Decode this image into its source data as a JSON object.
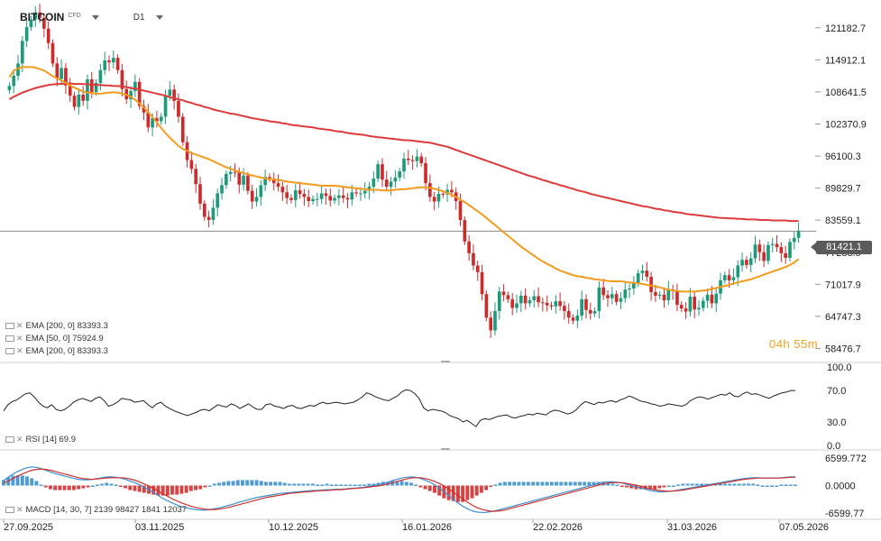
{
  "header": {
    "symbol": "BITCOIN",
    "symbol_type": "CFD",
    "timeframe": "D1"
  },
  "countdown": "04h 55m",
  "last_price_label": "81421.1",
  "indicators": {
    "ema1": "EMA [200, 0] 83393.3",
    "ema2": "EMA [50, 0] 75924.9",
    "ema3": "EMA [200, 0] 83393.3",
    "rsi": "RSI [14] 69.9",
    "macd": "MACD [14, 30, 7] 2139 98427 1841 12037"
  },
  "colors": {
    "up": "#1d9a7a",
    "down": "#cc2b2b",
    "ema200": "#dd3b3b",
    "ema50": "#f39b1f",
    "rsi": "#222222",
    "macd_line": "#3a8fd0",
    "signal_line": "#d02f2f"
  },
  "chart_data": [
    {
      "type": "candlestick",
      "title": "BITCOIN",
      "x_ticks": [
        "27.09.2025",
        "03.11.2025",
        "10.12.2025",
        "16.01.2026",
        "22.02.2026",
        "31.03.2026",
        "07.05.2026"
      ],
      "y_ticks": [
        "121182.7",
        "114912.1",
        "108641.5",
        "102370.9",
        "96100.3",
        "89829.7",
        "83559.1",
        "77288.5",
        "71017.9",
        "64747.3",
        "58476.7"
      ],
      "ylim": [
        57500,
        125200
      ],
      "last_price": 81421.1,
      "closes": [
        109800,
        111800,
        114200,
        118600,
        121300,
        122800,
        124200,
        123100,
        121000,
        118200,
        114200,
        111200,
        113300,
        109900,
        107900,
        105700,
        108100,
        106900,
        111100,
        108600,
        110400,
        112900,
        114800,
        114400,
        115300,
        112900,
        109200,
        107200,
        108800,
        110600,
        105900,
        104600,
        101700,
        103500,
        102900,
        103800,
        107900,
        109100,
        106900,
        103800,
        98800,
        95300,
        93600,
        90600,
        86800,
        84200,
        83600,
        86000,
        88800,
        90400,
        92600,
        93000,
        92900,
        90500,
        92300,
        89300,
        87200,
        88100,
        90400,
        92000,
        91700,
        90800,
        90100,
        89000,
        87900,
        87500,
        89400,
        88700,
        88100,
        87300,
        87700,
        87700,
        88800,
        88300,
        87400,
        87900,
        88400,
        87900,
        87600,
        89000,
        88800,
        88800,
        89300,
        90100,
        91700,
        94500,
        91500,
        90100,
        91100,
        91900,
        93100,
        95600,
        95300,
        95100,
        96000,
        94700,
        90800,
        88100,
        87200,
        88700,
        88600,
        89500,
        89000,
        87300,
        83600,
        79400,
        77100,
        74700,
        73400,
        69100,
        64500,
        62000,
        65800,
        69600,
        68900,
        68100,
        66400,
        67300,
        68800,
        67300,
        67900,
        68700,
        67500,
        67400,
        66900,
        66700,
        67700,
        66800,
        65800,
        64500,
        63900,
        64900,
        68100,
        66000,
        65300,
        65800,
        70400,
        68900,
        68300,
        69100,
        67600,
        68300,
        70000,
        70200,
        71200,
        73200,
        73700,
        72500,
        69500,
        68800,
        69000,
        67900,
        70000,
        69700,
        67000,
        66300,
        65700,
        68600,
        66100,
        66400,
        67800,
        69000,
        67300,
        69200,
        71800,
        72800,
        71800,
        72400,
        74700,
        75800,
        74800,
        76100,
        78800,
        77300,
        75600,
        78700,
        78900,
        78300,
        77100,
        76200,
        79300,
        80100,
        81400
      ],
      "ema50": [
        111500,
        112800,
        113200,
        113500,
        113500,
        113500,
        113400,
        113100,
        112800,
        112300,
        111700,
        111300,
        110900,
        110400,
        109900,
        109500,
        109100,
        108700,
        108500,
        108400,
        108300,
        108300,
        108400,
        108500,
        108600,
        108500,
        108300,
        108100,
        107700,
        107100,
        106400,
        105600,
        104700,
        103700,
        102700,
        101600,
        100600,
        99700,
        98900,
        98100,
        97500,
        97100,
        96700,
        96400,
        96100,
        95800,
        95500,
        95100,
        94700,
        94300,
        93900,
        93600,
        93300,
        93000,
        92800,
        92500,
        92300,
        92100,
        91900,
        91700,
        91600,
        91500,
        91400,
        91300,
        91100,
        91000,
        90900,
        90800,
        90700,
        90600,
        90500,
        90400,
        90300,
        90300,
        90300,
        90300,
        90200,
        90100,
        90000,
        89900,
        89800,
        89700,
        89600,
        89500,
        89500,
        89500,
        89400,
        89400,
        89400,
        89500,
        89600,
        89600,
        89700,
        89800,
        89900,
        90000,
        90000,
        89900,
        89700,
        89500,
        89200,
        88900,
        88500,
        88100,
        87600,
        87100,
        86500,
        85900,
        85300,
        84700,
        84000,
        83300,
        82600,
        81900,
        81200,
        80500,
        79800,
        79100,
        78400,
        77800,
        77200,
        76600,
        76000,
        75500,
        75000,
        74600,
        74100,
        73700,
        73400,
        73100,
        72800,
        72600,
        72500,
        72300,
        72200,
        72000,
        71900,
        71800,
        71700,
        71600,
        71600,
        71600,
        71500,
        71400,
        71300,
        71200,
        71100,
        70900,
        70800,
        70600,
        70400,
        70200,
        70000,
        69800,
        69700,
        69600,
        69600,
        69600,
        69600,
        69700,
        69800,
        69900,
        70100,
        70300,
        70500,
        70700,
        70900,
        71200,
        71400,
        71600,
        71800,
        72000,
        72300,
        72600,
        72900,
        73200,
        73500,
        73800,
        74100,
        74400,
        74800,
        75300,
        75900
      ],
      "ema200": [
        107200,
        107700,
        108100,
        108500,
        108800,
        109100,
        109400,
        109600,
        109800,
        110000,
        110100,
        110200,
        110200,
        110300,
        110300,
        110200,
        110200,
        110200,
        110100,
        110100,
        110000,
        110000,
        109900,
        109900,
        109800,
        109800,
        109700,
        109600,
        109400,
        109300,
        109100,
        108900,
        108700,
        108500,
        108300,
        108100,
        107900,
        107600,
        107400,
        107200,
        107000,
        106700,
        106500,
        106200,
        106000,
        105700,
        105500,
        105200,
        105000,
        104800,
        104600,
        104400,
        104300,
        104100,
        103900,
        103700,
        103500,
        103400,
        103200,
        103100,
        102900,
        102800,
        102700,
        102500,
        102400,
        102200,
        102100,
        102000,
        101900,
        101800,
        101700,
        101500,
        101400,
        101300,
        101200,
        101000,
        100900,
        100800,
        100600,
        100500,
        100400,
        100300,
        100200,
        100000,
        99900,
        99800,
        99700,
        99600,
        99500,
        99400,
        99300,
        99200,
        99200,
        99100,
        99000,
        98900,
        98800,
        98700,
        98500,
        98300,
        98100,
        97900,
        97600,
        97300,
        97000,
        96700,
        96400,
        96100,
        95800,
        95500,
        95200,
        94900,
        94600,
        94300,
        94000,
        93700,
        93400,
        93100,
        92800,
        92500,
        92200,
        92000,
        91700,
        91400,
        91200,
        90900,
        90700,
        90400,
        90200,
        89900,
        89700,
        89400,
        89200,
        89000,
        88700,
        88500,
        88300,
        88100,
        87900,
        87700,
        87500,
        87300,
        87100,
        86900,
        86700,
        86500,
        86300,
        86200,
        86000,
        85800,
        85700,
        85500,
        85400,
        85200,
        85100,
        85000,
        84800,
        84700,
        84600,
        84500,
        84400,
        84300,
        84200,
        84100,
        84000,
        84000,
        83900,
        83900,
        83800,
        83800,
        83700,
        83700,
        83700,
        83600,
        83600,
        83600,
        83500,
        83500,
        83500,
        83500,
        83400,
        83400,
        83400
      ]
    },
    {
      "type": "line",
      "title": "RSI [14] 69.9",
      "y_ticks": [
        "100.0",
        "70.0",
        "30.0",
        "0.0"
      ],
      "ylim": [
        0,
        100
      ],
      "values": [
        44,
        52,
        56,
        58,
        62,
        66,
        67,
        62,
        55,
        50,
        48,
        52,
        46,
        44,
        46,
        50,
        55,
        58,
        60,
        58,
        56,
        60,
        62,
        57,
        50,
        52,
        55,
        60,
        59,
        58,
        55,
        56,
        57,
        52,
        48,
        53,
        55,
        50,
        47,
        44,
        42,
        40,
        38,
        40,
        42,
        45,
        46,
        44,
        48,
        52,
        50,
        49,
        53,
        51,
        47,
        50,
        53,
        49,
        46,
        46,
        52,
        53,
        50,
        49,
        47,
        50,
        51,
        48,
        47,
        49,
        51,
        50,
        53,
        55,
        53,
        54,
        55,
        54,
        53,
        54,
        55,
        58,
        62,
        67,
        65,
        62,
        60,
        58,
        57,
        60,
        63,
        68,
        71,
        70,
        66,
        60,
        48,
        44,
        46,
        45,
        44,
        42,
        38,
        36,
        34,
        30,
        32,
        28,
        24,
        32,
        34,
        33,
        35,
        37,
        38,
        39,
        36,
        35,
        37,
        38,
        40,
        39,
        41,
        40,
        39,
        43,
        45,
        44,
        42,
        40,
        42,
        46,
        52,
        56,
        54,
        52,
        55,
        54,
        56,
        57,
        55,
        58,
        60,
        63,
        61,
        58,
        56,
        55,
        53,
        52,
        50,
        51,
        53,
        52,
        51,
        50,
        52,
        57,
        60,
        62,
        61,
        59,
        61,
        63,
        65,
        64,
        67,
        63,
        62,
        66,
        68,
        65,
        66,
        64,
        62,
        60,
        63,
        65,
        67,
        68,
        70,
        70
      ]
    },
    {
      "type": "bar+line",
      "title": "MACD [14, 30, 7]",
      "y_ticks": [
        "6599.772",
        "0.0000",
        "-6599.77"
      ],
      "ylim": [
        -7300,
        7300
      ],
      "macd": [
        1200,
        2000,
        2800,
        3400,
        3900,
        4300,
        4500,
        4400,
        4100,
        3700,
        3300,
        2900,
        2600,
        2300,
        2000,
        1700,
        1500,
        1400,
        1400,
        1500,
        1700,
        1900,
        2100,
        2100,
        2000,
        1800,
        1500,
        1100,
        700,
        200,
        -400,
        -1000,
        -1700,
        -2400,
        -3100,
        -3700,
        -4200,
        -4700,
        -5100,
        -5400,
        -5600,
        -5800,
        -5900,
        -5900,
        -5800,
        -5600,
        -5400,
        -5100,
        -4800,
        -4500,
        -4100,
        -3800,
        -3500,
        -3200,
        -2900,
        -2700,
        -2500,
        -2300,
        -2100,
        -1900,
        -1800,
        -1700,
        -1600,
        -1500,
        -1400,
        -1300,
        -1200,
        -1200,
        -1100,
        -1000,
        -1000,
        -900,
        -900,
        -800,
        -700,
        -600,
        -500,
        -400,
        -200,
        0,
        200,
        500,
        800,
        1200,
        1500,
        1800,
        2000,
        2100,
        2000,
        1700,
        1300,
        800,
        200,
        -600,
        -1500,
        -2400,
        -3300,
        -4200,
        -5000,
        -5600,
        -6100,
        -6400,
        -6500,
        -6500,
        -6300,
        -6100,
        -5800,
        -5500,
        -5200,
        -4900,
        -4600,
        -4300,
        -4000,
        -3700,
        -3400,
        -3100,
        -2800,
        -2500,
        -2200,
        -1900,
        -1600,
        -1300,
        -1000,
        -700,
        -400,
        -100,
        200,
        500,
        800,
        900,
        900,
        800,
        600,
        300,
        0,
        -300,
        -600,
        -900,
        -1200,
        -1400,
        -1500,
        -1500,
        -1400,
        -1300,
        -1100,
        -900,
        -700,
        -500,
        -300,
        -100,
        100,
        300,
        500,
        700,
        900,
        1100,
        1300,
        1500,
        1700,
        1800,
        1900,
        1900,
        1800,
        1800,
        1800,
        1800,
        1900,
        2000,
        2100,
        2100
      ],
      "signal": [
        600,
        1100,
        1700,
        2300,
        2800,
        3300,
        3700,
        3900,
        4000,
        3900,
        3700,
        3400,
        3100,
        2800,
        2500,
        2200,
        1900,
        1700,
        1600,
        1500,
        1600,
        1700,
        1800,
        1900,
        1900,
        1900,
        1800,
        1600,
        1300,
        900,
        400,
        -100,
        -700,
        -1300,
        -2000,
        -2600,
        -3200,
        -3700,
        -4200,
        -4600,
        -5000,
        -5300,
        -5500,
        -5700,
        -5800,
        -5800,
        -5700,
        -5500,
        -5300,
        -5000,
        -4700,
        -4400,
        -4100,
        -3800,
        -3500,
        -3200,
        -2900,
        -2700,
        -2500,
        -2300,
        -2100,
        -1900,
        -1800,
        -1700,
        -1600,
        -1500,
        -1400,
        -1300,
        -1200,
        -1200,
        -1100,
        -1000,
        -1000,
        -900,
        -800,
        -700,
        -600,
        -500,
        -400,
        -200,
        -100,
        100,
        400,
        700,
        1000,
        1300,
        1600,
        1800,
        1900,
        1900,
        1700,
        1400,
        1000,
        500,
        -100,
        -800,
        -1600,
        -2400,
        -3200,
        -4000,
        -4700,
        -5300,
        -5700,
        -6000,
        -6200,
        -6200,
        -6100,
        -5900,
        -5600,
        -5300,
        -5000,
        -4700,
        -4400,
        -4100,
        -3800,
        -3500,
        -3200,
        -2900,
        -2600,
        -2300,
        -2000,
        -1700,
        -1400,
        -1100,
        -800,
        -500,
        -200,
        100,
        400,
        600,
        700,
        700,
        700,
        500,
        300,
        100,
        -200,
        -500,
        -800,
        -1000,
        -1200,
        -1300,
        -1400,
        -1300,
        -1200,
        -1100,
        -900,
        -700,
        -500,
        -300,
        -100,
        100,
        300,
        500,
        700,
        900,
        1100,
        1300,
        1500,
        1600,
        1700,
        1800,
        1800,
        1800,
        1800,
        1800,
        1800,
        1900,
        2000,
        2000
      ]
    }
  ]
}
